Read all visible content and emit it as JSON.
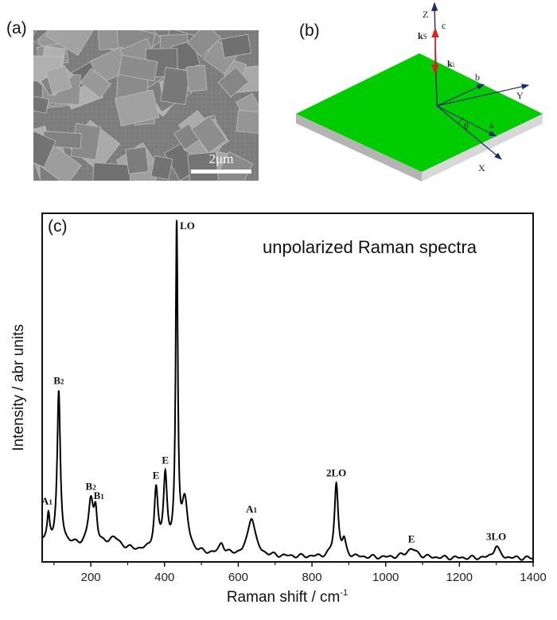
{
  "panels": {
    "a": {
      "label": "(a)",
      "scale_bar": "2μm"
    },
    "b": {
      "label": "(b)",
      "axes": {
        "z": "Z",
        "y": "Y",
        "x": "X",
        "c": "c",
        "b": "b",
        "a": "a",
        "theta": "θ"
      },
      "vectors": {
        "ks": "k",
        "ks_sub": "S",
        "ki": "k",
        "ki_sub": "i"
      },
      "colors": {
        "top_face": "#00cc00",
        "slab_side": "#c8c8c8",
        "axis_arrow": "#1a2a6c",
        "wave_vector": "#e02020"
      }
    },
    "c": {
      "label": "(c)"
    }
  },
  "chart_data": {
    "type": "line",
    "title": "unpolarized Raman spectra",
    "xlabel": "Raman shift / cm",
    "xlabel_sup": "-1",
    "ylabel": "Intensity / abr units",
    "xlim": [
      68,
      1400
    ],
    "ylim": [
      0,
      100
    ],
    "xticks": [
      200,
      400,
      600,
      800,
      1000,
      1200,
      1400
    ],
    "xticks_minor": [
      100,
      300,
      500,
      700,
      900,
      1100,
      1300
    ],
    "yticks": [],
    "grid": false,
    "line_color": "#000000",
    "baseline": {
      "offset": 1,
      "amplitude": 5,
      "decay_cm": 300
    },
    "peaks": [
      {
        "x": 85,
        "height": 7,
        "hwhm": 4,
        "label": {
          "base": "A",
          "sub": "1"
        }
      },
      {
        "x": 113,
        "height": 43,
        "hwhm": 5,
        "label": {
          "base": "B",
          "sub": "2"
        }
      },
      {
        "x": 200,
        "height": 13,
        "hwhm": 8,
        "label": {
          "base": "B",
          "sub": "2"
        }
      },
      {
        "x": 213,
        "height": 9,
        "hwhm": 5,
        "label": {
          "base": "B",
          "sub": "1"
        }
      },
      {
        "x": 262,
        "height": 3,
        "hwhm": 20,
        "label": null
      },
      {
        "x": 377,
        "height": 17,
        "hwhm": 6,
        "label": {
          "base": "E",
          "sub": ""
        }
      },
      {
        "x": 402,
        "height": 21,
        "hwhm": 6,
        "label": {
          "base": "E",
          "sub": ""
        }
      },
      {
        "x": 433,
        "height": 92,
        "hwhm": 3.5,
        "label": {
          "base": "LO",
          "sub": ""
        }
      },
      {
        "x": 455,
        "height": 14,
        "hwhm": 10,
        "label": null
      },
      {
        "x": 555,
        "height": 3,
        "hwhm": 8,
        "label": null
      },
      {
        "x": 636,
        "height": 11,
        "hwhm": 12,
        "label": {
          "base": "A",
          "sub": "1"
        }
      },
      {
        "x": 866,
        "height": 21,
        "hwhm": 6,
        "label": {
          "base": "2LO",
          "sub": ""
        }
      },
      {
        "x": 887,
        "height": 4,
        "hwhm": 6,
        "label": null
      },
      {
        "x": 1070,
        "height": 2.5,
        "hwhm": 18,
        "label": {
          "base": "E",
          "sub": ""
        }
      },
      {
        "x": 1300,
        "height": 3.5,
        "hwhm": 9,
        "label": {
          "base": "3LO",
          "sub": ""
        }
      }
    ]
  }
}
